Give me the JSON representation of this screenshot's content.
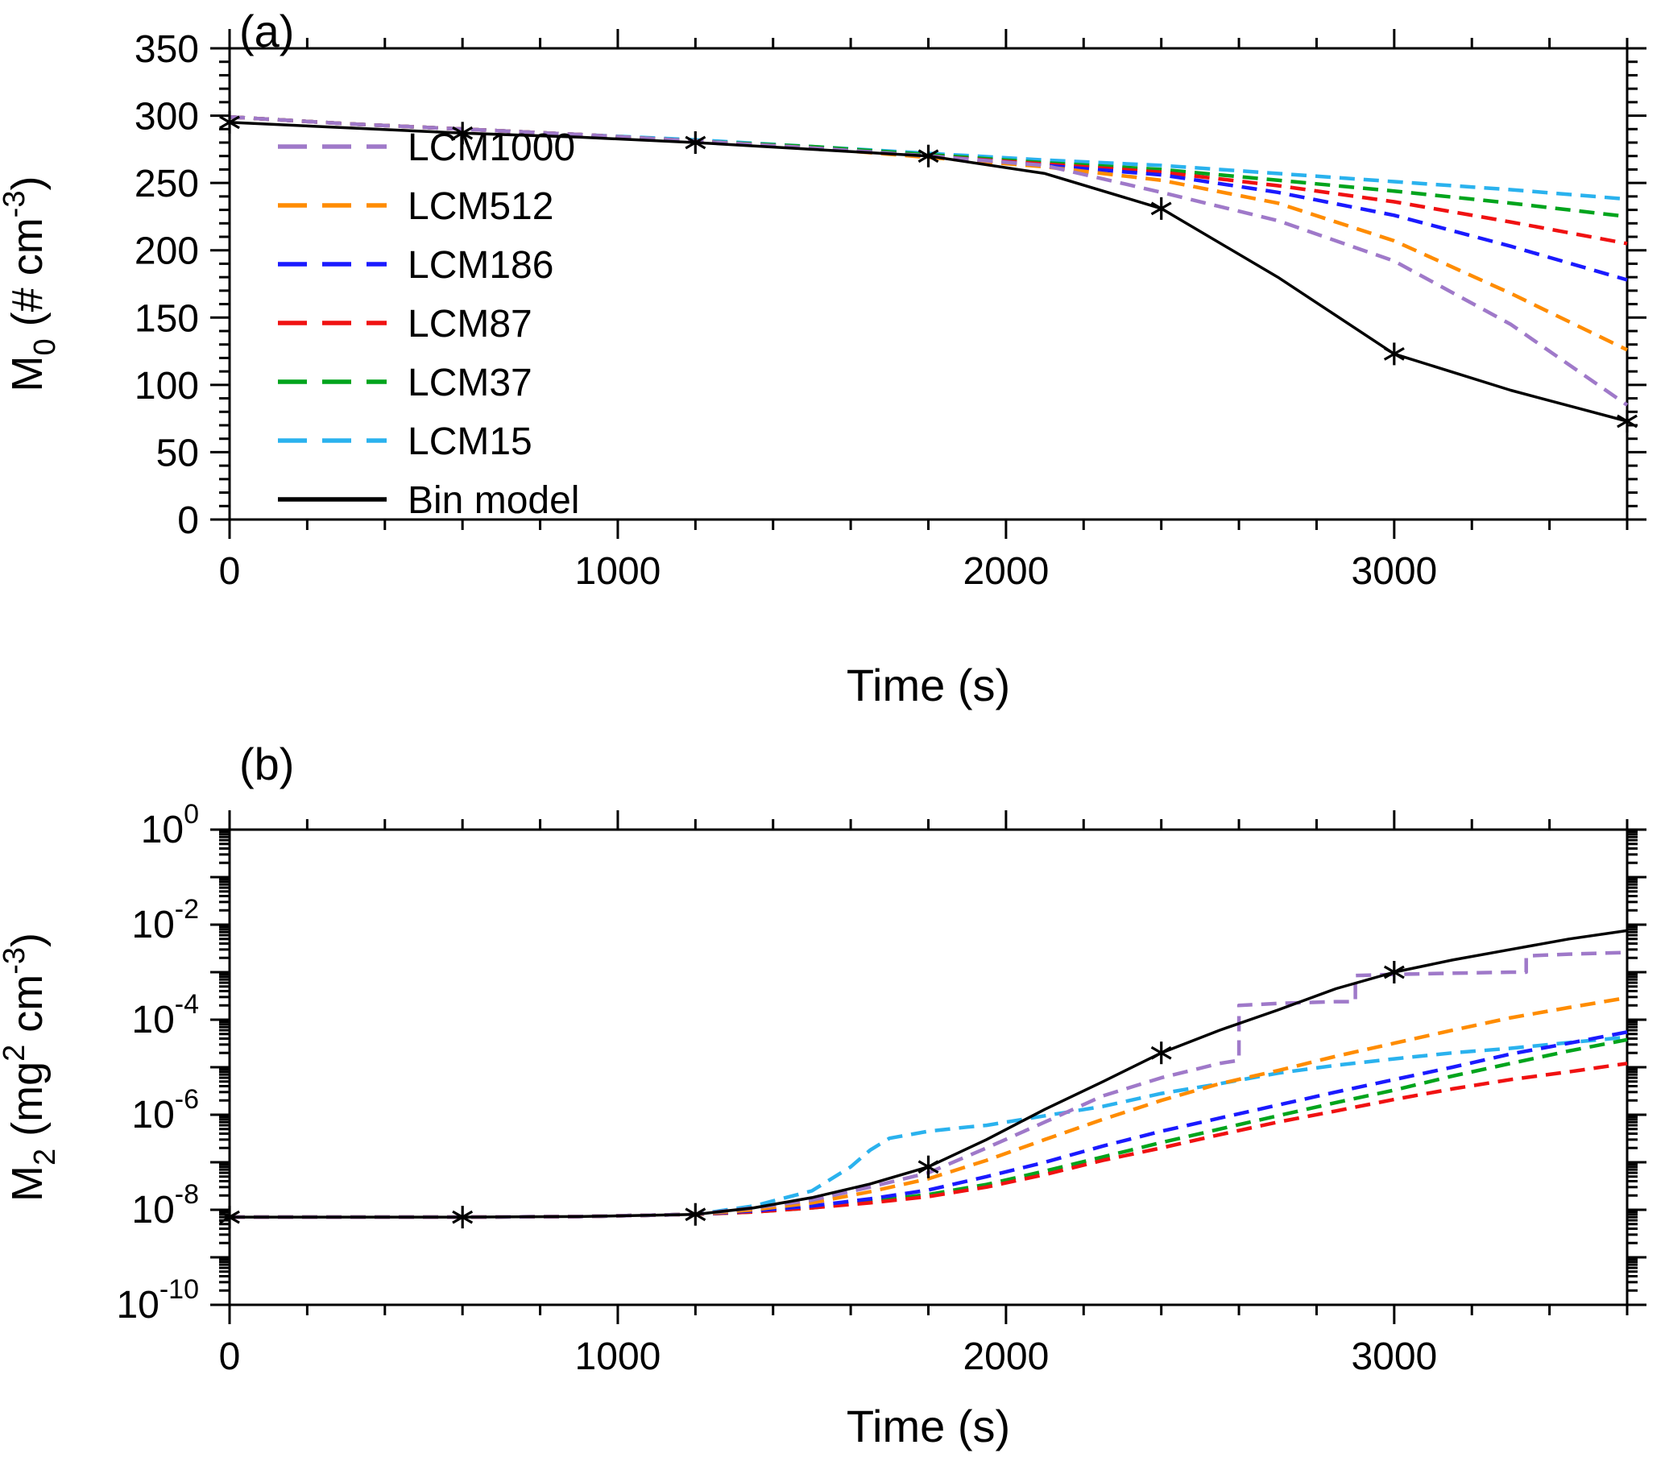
{
  "chart_data": [
    {
      "id": "panel-a",
      "type": "line",
      "panel_label": "(a)",
      "xlabel": "Time (s)",
      "ylabel_text": "M0 (# cm-3)",
      "ylabel_parts": [
        {
          "t": "M"
        },
        {
          "t": "0",
          "pos": "sub"
        },
        {
          "t": " (# cm"
        },
        {
          "t": "-3",
          "pos": "sup"
        },
        {
          "t": ")"
        }
      ],
      "xlim": [
        0,
        3600
      ],
      "ylim": [
        0,
        350
      ],
      "yscale": "linear",
      "xticks": [
        0,
        1000,
        2000,
        3000
      ],
      "xminor_step": 200,
      "yticks": [
        0,
        50,
        100,
        150,
        200,
        250,
        300,
        350
      ],
      "yminor_step": 10,
      "legend": {
        "position": "upper-left",
        "entries": [
          "LCM1000",
          "LCM512",
          "LCM186",
          "LCM87",
          "LCM37",
          "LCM15",
          "Bin model"
        ]
      },
      "series": [
        {
          "name": "LCM1000",
          "color": "#9f79c9",
          "dash": "19 11",
          "width": 4.5,
          "z": 6,
          "x": [
            0,
            300,
            600,
            900,
            1200,
            1500,
            1800,
            2100,
            2400,
            2700,
            3000,
            3300,
            3600
          ],
          "y": [
            299,
            294,
            290,
            286,
            281,
            276,
            270,
            263,
            243,
            222,
            192,
            145,
            85
          ]
        },
        {
          "name": "LCM512",
          "color": "#ff8c00",
          "dash": "19 11",
          "width": 4.5,
          "z": 5,
          "x": [
            0,
            300,
            600,
            900,
            1200,
            1500,
            1800,
            2100,
            2400,
            2700,
            3000,
            3300,
            3600
          ],
          "y": [
            299,
            294,
            290,
            286,
            281,
            276,
            269,
            262,
            252,
            235,
            207,
            168,
            126
          ]
        },
        {
          "name": "LCM186",
          "color": "#1a1aff",
          "dash": "19 11",
          "width": 4.5,
          "z": 4,
          "x": [
            0,
            300,
            600,
            900,
            1200,
            1500,
            1800,
            2100,
            2400,
            2700,
            3000,
            3300,
            3600
          ],
          "y": [
            299,
            294,
            290,
            286,
            281,
            276,
            270,
            263,
            256,
            243,
            226,
            203,
            178
          ]
        },
        {
          "name": "LCM87",
          "color": "#f01111",
          "dash": "19 11",
          "width": 4.5,
          "z": 3,
          "x": [
            0,
            300,
            600,
            900,
            1200,
            1500,
            1800,
            2100,
            2400,
            2700,
            3000,
            3300,
            3600
          ],
          "y": [
            299,
            294,
            290,
            286,
            281,
            276,
            270,
            264,
            258,
            248,
            236,
            221,
            205
          ]
        },
        {
          "name": "LCM37",
          "color": "#00a41c",
          "dash": "19 11",
          "width": 4.5,
          "z": 2,
          "x": [
            0,
            300,
            600,
            900,
            1200,
            1500,
            1800,
            2100,
            2400,
            2700,
            3000,
            3300,
            3600
          ],
          "y": [
            299,
            294,
            290,
            286,
            281,
            277,
            271,
            265,
            260,
            252,
            244,
            235,
            225
          ]
        },
        {
          "name": "LCM15",
          "color": "#2ab2ee",
          "dash": "19 11",
          "width": 4.5,
          "z": 1,
          "x": [
            0,
            300,
            600,
            900,
            1200,
            1500,
            1800,
            2100,
            2400,
            2700,
            3000,
            3300,
            3600
          ],
          "y": [
            299,
            294,
            290,
            286,
            282,
            277,
            272,
            267,
            263,
            257,
            251,
            245,
            238
          ]
        },
        {
          "name": "Bin model",
          "color": "#000000",
          "dash": null,
          "width": 3.5,
          "z": 7,
          "x": [
            0,
            300,
            600,
            900,
            1200,
            1500,
            1800,
            2100,
            2400,
            2700,
            3000,
            3300,
            3600
          ],
          "y": [
            295,
            291,
            287,
            284,
            280,
            275,
            270,
            257,
            231,
            180,
            123,
            96,
            73
          ],
          "markers": {
            "symbol": "asterisk",
            "x": [
              0,
              600,
              1200,
              1800,
              2400,
              3000,
              3600
            ]
          }
        }
      ]
    },
    {
      "id": "panel-b",
      "type": "line",
      "panel_label": "(b)",
      "xlabel": "Time (s)",
      "ylabel_text": "M2 (mg2 cm-3)",
      "ylabel_parts": [
        {
          "t": "M"
        },
        {
          "t": "2",
          "pos": "sub"
        },
        {
          "t": " (mg"
        },
        {
          "t": "2",
          "pos": "sup"
        },
        {
          "t": " cm"
        },
        {
          "t": "-3",
          "pos": "sup"
        },
        {
          "t": ")"
        }
      ],
      "xlim": [
        0,
        3600
      ],
      "ylim": [
        1e-10,
        1
      ],
      "yscale": "log",
      "xticks": [
        0,
        1000,
        2000,
        3000
      ],
      "xminor_step": 200,
      "ytick_exponents": [
        0,
        -2,
        -4,
        -6,
        -8,
        -10
      ],
      "series": [
        {
          "name": "LCM1000",
          "color": "#9f79c9",
          "dash": "19 11",
          "width": 4.5,
          "z": 6,
          "x": [
            0,
            300,
            600,
            900,
            1200,
            1350,
            1500,
            1650,
            1800,
            1950,
            2100,
            2250,
            2400,
            2550,
            2600,
            2600,
            2700,
            2850,
            2900,
            2900,
            3000,
            3150,
            3300,
            3340,
            3340,
            3450,
            3600
          ],
          "y": [
            7e-09,
            7e-09,
            7e-09,
            7.2e-09,
            8e-09,
            1.1e-08,
            1.6e-08,
            3e-08,
            6e-08,
            2e-07,
            7e-07,
            2.5e-06,
            6e-06,
            1.2e-05,
            1.4e-05,
            0.0002,
            0.00022,
            0.00024,
            0.00024,
            0.00085,
            0.0009,
            0.00095,
            0.001,
            0.001,
            0.0022,
            0.0024,
            0.0026
          ]
        },
        {
          "name": "LCM512",
          "color": "#ff8c00",
          "dash": "19 11",
          "width": 4.5,
          "z": 5,
          "x": [
            0,
            300,
            600,
            900,
            1200,
            1350,
            1500,
            1650,
            1800,
            1950,
            2100,
            2250,
            2400,
            2550,
            2700,
            2850,
            3000,
            3150,
            3300,
            3450,
            3600
          ],
          "y": [
            7e-09,
            7e-09,
            7e-09,
            7.2e-09,
            8e-09,
            1e-08,
            1.4e-08,
            2.4e-08,
            4.5e-08,
            1.1e-07,
            3e-07,
            8e-07,
            2e-06,
            4.5e-06,
            8.5e-06,
            1.7e-05,
            3.2e-05,
            6e-05,
            0.00011,
            0.00018,
            0.00029
          ]
        },
        {
          "name": "LCM186",
          "color": "#1a1aff",
          "dash": "19 11",
          "width": 4.5,
          "z": 4,
          "x": [
            0,
            300,
            600,
            900,
            1200,
            1350,
            1500,
            1650,
            1800,
            1950,
            2100,
            2250,
            2400,
            2550,
            2700,
            2850,
            3000,
            3150,
            3300,
            3450,
            3600
          ],
          "y": [
            7e-09,
            7e-09,
            7e-09,
            7.2e-09,
            8e-09,
            9.5e-09,
            1.2e-08,
            1.7e-08,
            2.6e-08,
            5e-08,
            1e-07,
            2.2e-07,
            4.5e-07,
            8.5e-07,
            1.6e-06,
            3e-06,
            5.5e-06,
            1e-05,
            1.9e-05,
            3.2e-05,
            5.5e-05
          ]
        },
        {
          "name": "LCM87",
          "color": "#f01111",
          "dash": "19 11",
          "width": 4.5,
          "z": 3,
          "x": [
            0,
            300,
            600,
            900,
            1200,
            1350,
            1500,
            1650,
            1800,
            1950,
            2100,
            2250,
            2400,
            2550,
            2700,
            2850,
            3000,
            3150,
            3300,
            3450,
            3600
          ],
          "y": [
            7e-09,
            7e-09,
            7e-09,
            7.2e-09,
            8e-09,
            9e-09,
            1.1e-08,
            1.4e-08,
            1.9e-08,
            3e-08,
            5.5e-08,
            1.1e-07,
            2e-07,
            3.8e-07,
            7e-07,
            1.2e-06,
            2.1e-06,
            3.5e-06,
            5.5e-06,
            8e-06,
            1.2e-05
          ]
        },
        {
          "name": "LCM37",
          "color": "#00a41c",
          "dash": "19 11",
          "width": 4.5,
          "z": 2,
          "x": [
            0,
            300,
            600,
            900,
            1200,
            1350,
            1500,
            1650,
            1800,
            1950,
            2100,
            2250,
            2400,
            2550,
            2700,
            2850,
            3000,
            3150,
            3300,
            3450,
            3600
          ],
          "y": [
            7e-09,
            7e-09,
            7e-09,
            7.2e-09,
            8e-09,
            9e-09,
            1.1e-08,
            1.5e-08,
            2.1e-08,
            3.4e-08,
            6.5e-08,
            1.3e-07,
            2.6e-07,
            5e-07,
            9.5e-07,
            1.8e-06,
            3.3e-06,
            6.5e-06,
            1.2e-05,
            2.2e-05,
            3.8e-05
          ]
        },
        {
          "name": "LCM15",
          "color": "#2ab2ee",
          "dash": "19 11",
          "width": 4.5,
          "z": 1,
          "x": [
            0,
            300,
            600,
            900,
            1200,
            1350,
            1500,
            1600,
            1650,
            1700,
            1800,
            1900,
            1950,
            2100,
            2250,
            2400,
            2550,
            2700,
            2850,
            3000,
            3150,
            3300,
            3450,
            3600
          ],
          "y": [
            7e-09,
            7e-09,
            7e-09,
            7.2e-09,
            8e-09,
            1.2e-08,
            2.5e-08,
            8e-08,
            1.8e-07,
            3.2e-07,
            4.5e-07,
            5.5e-07,
            6e-07,
            9.5e-07,
            1.5e-06,
            2.8e-06,
            4.5e-06,
            7.5e-06,
            1.1e-05,
            1.5e-05,
            2e-05,
            2.5e-05,
            3.3e-05,
            4.3e-05
          ]
        },
        {
          "name": "Bin model",
          "color": "#000000",
          "dash": null,
          "width": 3.5,
          "z": 7,
          "x": [
            0,
            300,
            600,
            900,
            1200,
            1350,
            1500,
            1650,
            1800,
            1950,
            2100,
            2250,
            2400,
            2550,
            2700,
            2850,
            3000,
            3150,
            3300,
            3450,
            3600
          ],
          "y": [
            7e-09,
            7e-09,
            7e-09,
            7.2e-09,
            8e-09,
            1.1e-08,
            1.8e-08,
            3.5e-08,
            8e-08,
            3e-07,
            1.3e-06,
            5e-06,
            2e-05,
            6e-05,
            0.00016,
            0.00045,
            0.001,
            0.0018,
            0.003,
            0.005,
            0.0075
          ],
          "markers": {
            "symbol": "asterisk",
            "x": [
              0,
              600,
              1200,
              1800,
              2400,
              3000
            ]
          }
        }
      ]
    }
  ]
}
